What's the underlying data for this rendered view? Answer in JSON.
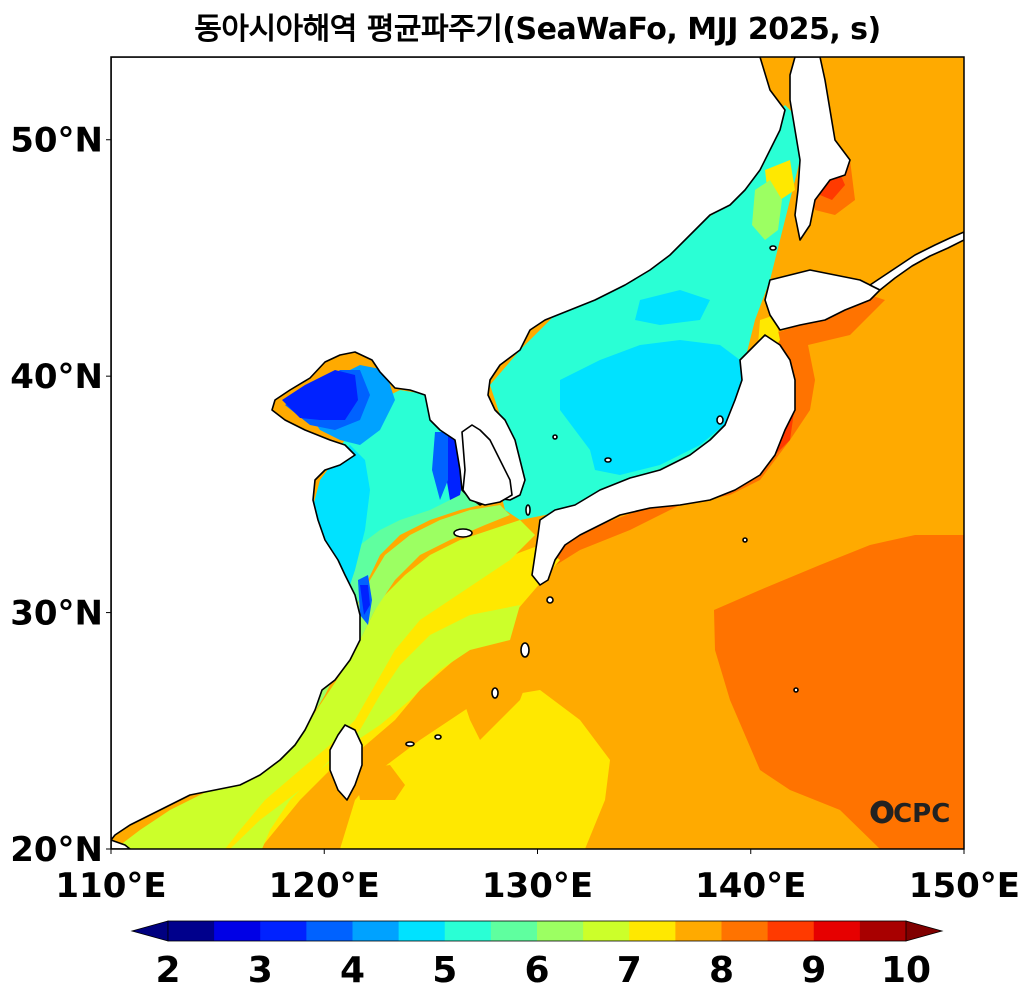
{
  "title": "동아시아해역 평균파주기(SeaWaFo, MJJ 2025, s)",
  "logo_text": "OCPC",
  "axes": {
    "lon_min": 110,
    "lon_max": 150,
    "lat_min": 20,
    "lat_max": 53.5,
    "x_ticks": [
      {
        "value": 110,
        "label": "110°E"
      },
      {
        "value": 120,
        "label": "120°E"
      },
      {
        "value": 130,
        "label": "130°E"
      },
      {
        "value": 140,
        "label": "140°E"
      },
      {
        "value": 150,
        "label": "150°E"
      }
    ],
    "y_ticks": [
      {
        "value": 20,
        "label": "20°N"
      },
      {
        "value": 30,
        "label": "30°N"
      },
      {
        "value": 40,
        "label": "40°N"
      },
      {
        "value": 50,
        "label": "50°N"
      }
    ]
  },
  "colorbar": {
    "levels": [
      2,
      2.5,
      3,
      3.5,
      4,
      4.5,
      5,
      5.5,
      6,
      6.5,
      7,
      7.5,
      8,
      8.5,
      9,
      9.5,
      10
    ],
    "colors": [
      "#00008c",
      "#0000e6",
      "#0022ff",
      "#0062ff",
      "#00a2ff",
      "#00e2ff",
      "#2affd5",
      "#5fff9f",
      "#9cff62",
      "#ccff2a",
      "#ffe800",
      "#ffaa00",
      "#ff7300",
      "#ff3a00",
      "#e60000",
      "#a80000"
    ],
    "under_color": "#000080",
    "over_color": "#800000",
    "labels": [
      "2",
      "3",
      "4",
      "5",
      "6",
      "7",
      "8",
      "9",
      "10"
    ],
    "label_values": [
      2,
      3,
      4,
      5,
      6,
      7,
      8,
      9,
      10
    ]
  }
}
